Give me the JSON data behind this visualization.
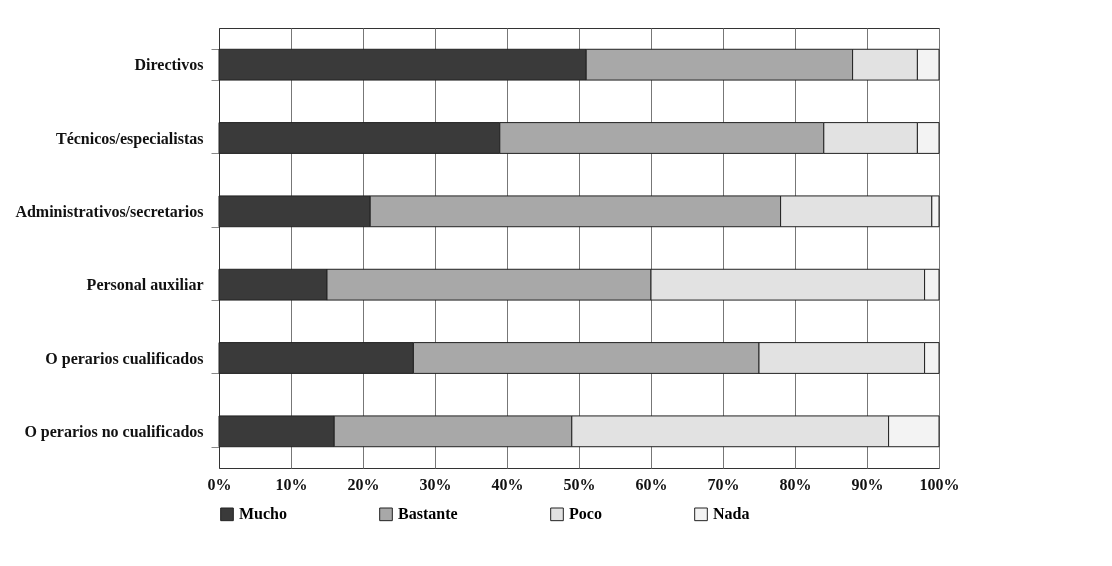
{
  "chart_data": {
    "type": "bar",
    "orientation": "horizontal",
    "stacked": true,
    "categories": [
      "Directivos",
      "Técnicos/especialistas",
      "Administrativos/secretarios",
      "Personal auxiliar",
      "O perarios cualificados",
      "O perarios no cualificados"
    ],
    "series": [
      {
        "name": "Mucho",
        "color": "#3a3a3a",
        "values": [
          51,
          39,
          21,
          15,
          27,
          16
        ]
      },
      {
        "name": "Bastante",
        "color": "#a8a8a8",
        "values": [
          37,
          45,
          57,
          45,
          48,
          33
        ]
      },
      {
        "name": "Poco",
        "color": "#e2e2e2",
        "values": [
          9,
          13,
          21,
          38,
          23,
          44
        ]
      },
      {
        "name": "Nada",
        "color": "#f3f3f3",
        "values": [
          3,
          3,
          1,
          2,
          2,
          7
        ]
      }
    ],
    "xlim": [
      0,
      100
    ],
    "xticks": [
      {
        "value": 0,
        "label": "0%"
      },
      {
        "value": 10,
        "label": "10%"
      },
      {
        "value": 20,
        "label": "20%"
      },
      {
        "value": 30,
        "label": "30%"
      },
      {
        "value": 40,
        "label": "40%"
      },
      {
        "value": 50,
        "label": "50%"
      },
      {
        "value": 60,
        "label": "60%"
      },
      {
        "value": 70,
        "label": "70%"
      },
      {
        "value": 80,
        "label": "80%"
      },
      {
        "value": 90,
        "label": "90%"
      },
      {
        "value": 100,
        "label": "100%"
      }
    ],
    "grid": "x",
    "legend": "bottom"
  }
}
